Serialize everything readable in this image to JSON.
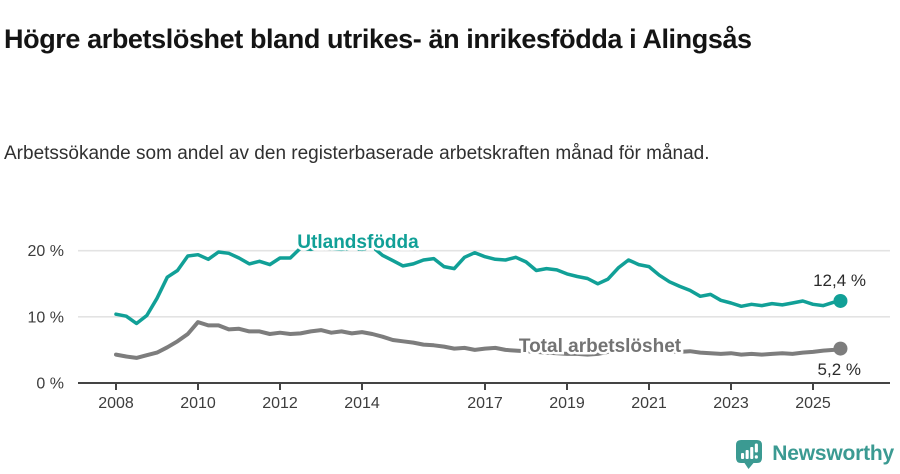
{
  "header": {
    "title": "Högre arbetslöshet bland utrikes- än inrikesfödda i Alingsås",
    "subtitle": "Arbetssökande som andel av den registerbaserade arbetskraften månad för månad."
  },
  "colors": {
    "title_text": "#141414",
    "subtitle_text": "#303030",
    "axis_text": "#3d3d3d",
    "gridline": "#e3e3e3",
    "axis_line": "#444444",
    "end_label_text": "#2b2b2b",
    "foreign_series": "#11a097",
    "total_series": "#7d7d7d",
    "total_label": "#737373",
    "brand_teal": "#3b9a92"
  },
  "footer": {
    "brand": "Newsworthy",
    "logo_icon": "speech-bubble-bar-chart-exclamation"
  },
  "chart_data": {
    "type": "line",
    "title": "Högre arbetslöshet bland utrikes- än inrikesfödda i Alingsås",
    "subtitle": "Arbetssökande som andel av den registerbaserade arbetskraften månad för månad.",
    "unit": "%",
    "grid": "horizontal",
    "legend_position": "inline-labels",
    "xlim": [
      2008,
      2025.9
    ],
    "ylim": [
      0,
      22
    ],
    "x_ticks": [
      2008,
      2010,
      2012,
      2014,
      2017,
      2019,
      2021,
      2023,
      2025
    ],
    "x_tick_labels": [
      "2008",
      "2010",
      "2012",
      "2014",
      "2017",
      "2019",
      "2021",
      "2023",
      "2025"
    ],
    "y_ticks": [
      0,
      10,
      20
    ],
    "y_tick_labels": [
      "0 %",
      "10 %",
      "20 %"
    ],
    "x": [
      2008.0,
      2008.25,
      2008.5,
      2008.75,
      2009.0,
      2009.25,
      2009.5,
      2009.75,
      2010.0,
      2010.25,
      2010.5,
      2010.75,
      2011.0,
      2011.25,
      2011.5,
      2011.75,
      2012.0,
      2012.25,
      2012.5,
      2012.75,
      2013.0,
      2013.25,
      2013.5,
      2013.75,
      2014.0,
      2014.25,
      2014.5,
      2014.75,
      2015.0,
      2015.25,
      2015.5,
      2015.75,
      2016.0,
      2016.25,
      2016.5,
      2016.75,
      2017.0,
      2017.25,
      2017.5,
      2017.75,
      2018.0,
      2018.25,
      2018.5,
      2018.75,
      2019.0,
      2019.25,
      2019.5,
      2019.75,
      2020.0,
      2020.25,
      2020.5,
      2020.75,
      2021.0,
      2021.25,
      2021.5,
      2021.75,
      2022.0,
      2022.25,
      2022.5,
      2022.75,
      2023.0,
      2023.25,
      2023.5,
      2023.75,
      2024.0,
      2024.25,
      2024.5,
      2024.75,
      2025.0,
      2025.25,
      2025.5,
      2025.67
    ],
    "series": [
      {
        "name": "Utlandsfödda",
        "color": "#11a097",
        "end_value": 12.4,
        "end_label": "12,4 %",
        "values": [
          10.4,
          10.1,
          9.0,
          10.2,
          12.8,
          16.0,
          17.0,
          19.2,
          19.4,
          18.7,
          19.8,
          19.6,
          18.9,
          18.0,
          18.4,
          17.9,
          18.9,
          18.9,
          20.4,
          20.2,
          20.7,
          20.3,
          20.2,
          20.4,
          20.2,
          20.6,
          19.3,
          18.5,
          17.7,
          18.0,
          18.6,
          18.8,
          17.6,
          17.3,
          19.0,
          19.7,
          19.1,
          18.7,
          18.6,
          19.0,
          18.3,
          17.0,
          17.3,
          17.1,
          16.5,
          16.1,
          15.8,
          15.0,
          15.7,
          17.4,
          18.6,
          17.9,
          17.6,
          16.3,
          15.3,
          14.6,
          14.0,
          13.1,
          13.4,
          12.5,
          12.1,
          11.6,
          11.9,
          11.7,
          12.0,
          11.8,
          12.1,
          12.4,
          11.9,
          11.7,
          12.2,
          12.4
        ]
      },
      {
        "name": "Total arbetslöshet",
        "color": "#7d7d7d",
        "end_value": 5.2,
        "end_label": "5,2 %",
        "values": [
          4.3,
          4.0,
          3.8,
          4.2,
          4.6,
          5.4,
          6.3,
          7.4,
          9.2,
          8.7,
          8.7,
          8.1,
          8.2,
          7.8,
          7.8,
          7.4,
          7.6,
          7.4,
          7.5,
          7.8,
          8.0,
          7.6,
          7.8,
          7.5,
          7.7,
          7.4,
          7.0,
          6.5,
          6.3,
          6.1,
          5.8,
          5.7,
          5.5,
          5.2,
          5.3,
          5.0,
          5.2,
          5.3,
          5.0,
          4.9,
          4.8,
          4.7,
          4.6,
          4.5,
          4.4,
          4.4,
          4.3,
          4.4,
          4.7,
          5.3,
          5.5,
          5.3,
          5.1,
          4.9,
          4.8,
          4.7,
          4.8,
          4.6,
          4.5,
          4.4,
          4.5,
          4.3,
          4.4,
          4.3,
          4.4,
          4.5,
          4.4,
          4.6,
          4.7,
          4.9,
          5.0,
          5.2
        ]
      }
    ]
  }
}
